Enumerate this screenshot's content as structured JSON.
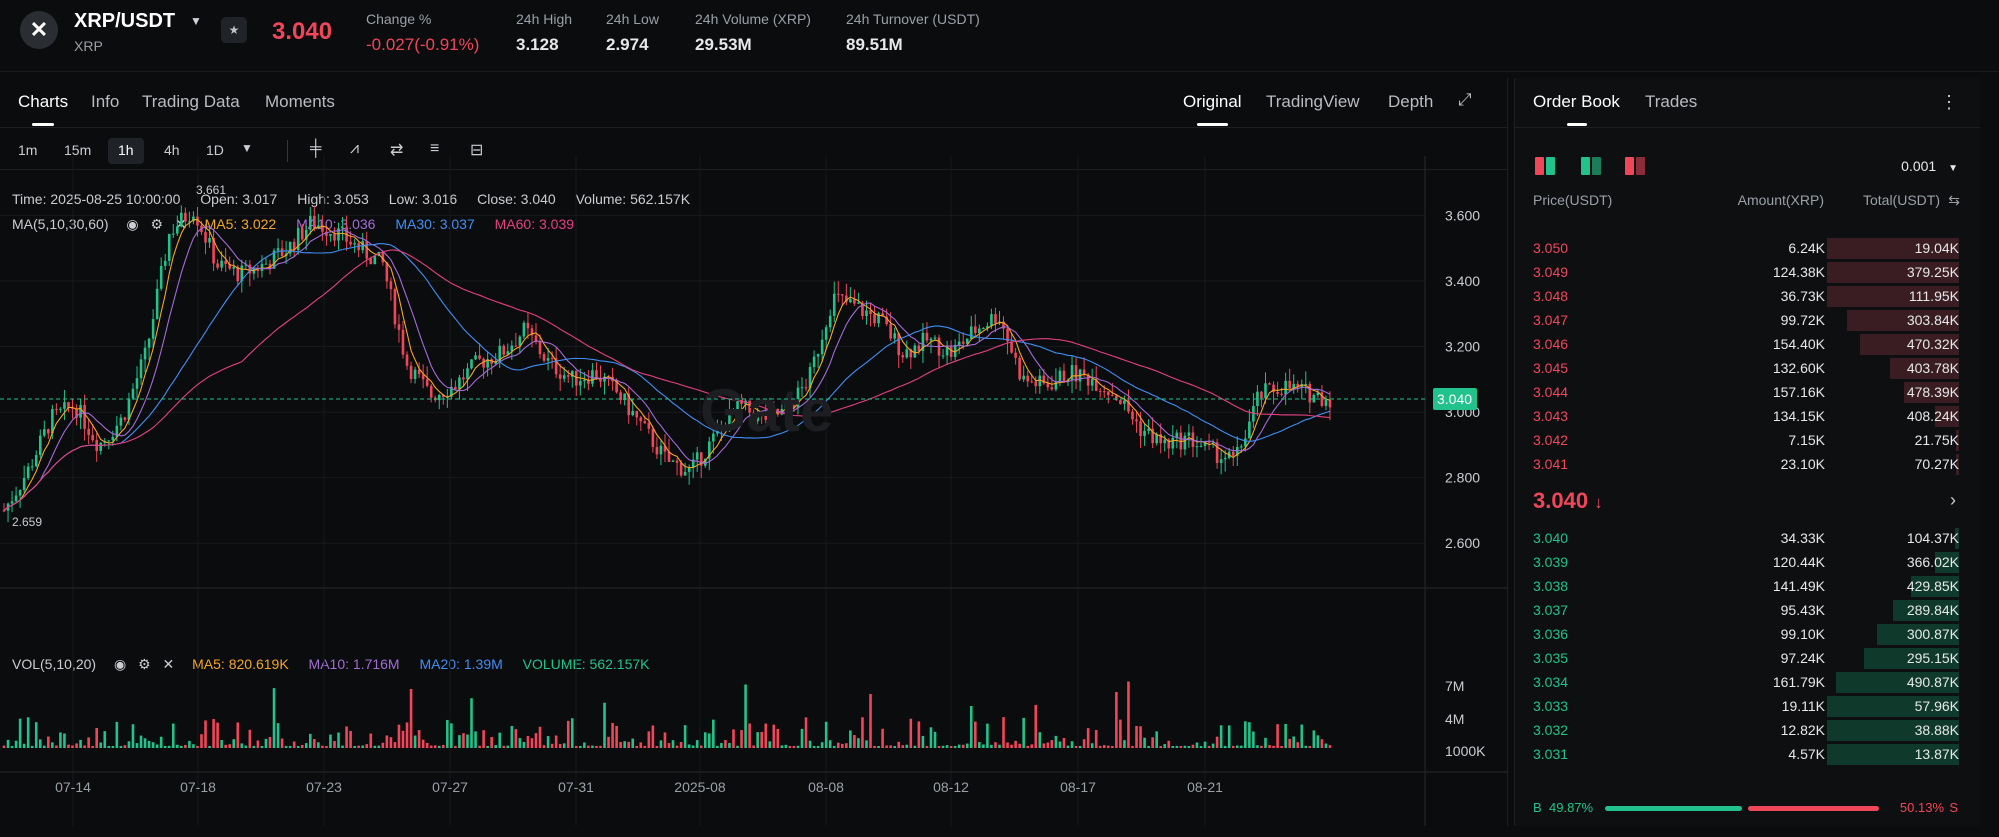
{
  "header": {
    "pair": "XRP/USDT",
    "base": "XRP",
    "last_price": "3.040",
    "change_label": "Change %",
    "change_value": "-0.027(-0.91%)",
    "high_label": "24h High",
    "high_value": "3.128",
    "low_label": "24h Low",
    "low_value": "2.974",
    "vol_label": "24h Volume (XRP)",
    "vol_value": "29.53M",
    "turnover_label": "24h Turnover (USDT)",
    "turnover_value": "89.51M"
  },
  "chart_tabs": [
    "Charts",
    "Info",
    "Trading Data",
    "Moments"
  ],
  "chart_modes": [
    "Original",
    "TradingView",
    "Depth"
  ],
  "timeframes": [
    "1m",
    "15m",
    "1h",
    "4h",
    "1D"
  ],
  "ohlc": {
    "time": "Time: 2025-08-25 10:00:00",
    "open": "Open: 3.017",
    "high": "High: 3.053",
    "low": "Low: 3.016",
    "close": "Close: 3.040",
    "volume": "Volume: 562.157K"
  },
  "ma": {
    "label": "MA(5,10,30,60)",
    "ma5": "MA5: 3.022",
    "ma10": "MA10: 3.036",
    "ma30": "MA30: 3.037",
    "ma60": "MA60: 3.039"
  },
  "vol": {
    "label": "VOL(5,10,20)",
    "ma5": "MA5: 820.619K",
    "ma10": "MA10: 1.716M",
    "ma20": "MA20: 1.39M",
    "volume": "VOLUME: 562.157K"
  },
  "chart_data": {
    "type": "line",
    "title": "",
    "price_axis": [
      "3.600",
      "3.400",
      "3.200",
      "3.000",
      "2.800",
      "2.600"
    ],
    "volume_axis": [
      "7M",
      "4M",
      "1000K"
    ],
    "x_labels": [
      "07-14",
      "07-18",
      "07-23",
      "07-27",
      "07-31",
      "2025-08",
      "08-08",
      "08-12",
      "08-17",
      "08-21"
    ],
    "current_price_tag": "3.040",
    "high_marker": "3.661",
    "low_marker": "2.659",
    "series": [
      {
        "values": [
          2.7,
          2.82,
          2.98,
          3.02,
          2.9,
          2.98,
          3.18,
          3.55,
          3.62,
          3.45,
          3.42,
          3.45,
          3.5,
          3.58,
          3.55,
          3.5,
          3.45,
          3.15,
          3.05,
          3.08,
          3.15,
          3.18,
          3.25,
          3.15,
          3.1,
          3.12,
          3.05,
          2.95,
          2.85,
          2.82,
          2.92,
          3.02,
          2.98,
          3.0,
          3.1,
          3.35,
          3.32,
          3.28,
          3.18,
          3.22,
          3.18,
          3.25,
          3.3,
          3.1,
          3.08,
          3.12,
          3.1,
          3.05,
          2.95,
          2.9,
          2.92,
          2.88,
          2.85,
          3.05,
          3.08,
          3.06,
          3.04
        ]
      }
    ]
  },
  "book": {
    "tabs": [
      "Order Book",
      "Trades"
    ],
    "precision": "0.001",
    "headers": {
      "price": "Price(USDT)",
      "amount": "Amount(XRP)",
      "total": "Total(USDT)"
    },
    "asks": [
      {
        "price": "3.050",
        "amount": "6.24K",
        "total": "19.04K",
        "depth": 1.0
      },
      {
        "price": "3.049",
        "amount": "124.38K",
        "total": "379.25K",
        "depth": 1.0
      },
      {
        "price": "3.048",
        "amount": "36.73K",
        "total": "111.95K",
        "depth": 1.0
      },
      {
        "price": "3.047",
        "amount": "99.72K",
        "total": "303.84K",
        "depth": 0.85
      },
      {
        "price": "3.046",
        "amount": "154.40K",
        "total": "470.32K",
        "depth": 0.75
      },
      {
        "price": "3.045",
        "amount": "132.60K",
        "total": "403.78K",
        "depth": 0.52
      },
      {
        "price": "3.044",
        "amount": "157.16K",
        "total": "478.39K",
        "depth": 0.42
      },
      {
        "price": "3.043",
        "amount": "134.15K",
        "total": "408.24K",
        "depth": 0.18
      },
      {
        "price": "3.042",
        "amount": "7.15K",
        "total": "21.75K",
        "depth": 0.02
      },
      {
        "price": "3.041",
        "amount": "23.10K",
        "total": "70.27K",
        "depth": 0.02
      }
    ],
    "mid_price": "3.040",
    "bids": [
      {
        "price": "3.040",
        "amount": "34.33K",
        "total": "104.37K",
        "depth": 0.03
      },
      {
        "price": "3.039",
        "amount": "120.44K",
        "total": "366.02K",
        "depth": 0.18
      },
      {
        "price": "3.038",
        "amount": "141.49K",
        "total": "429.85K",
        "depth": 0.36
      },
      {
        "price": "3.037",
        "amount": "95.43K",
        "total": "289.84K",
        "depth": 0.5
      },
      {
        "price": "3.036",
        "amount": "99.10K",
        "total": "300.87K",
        "depth": 0.62
      },
      {
        "price": "3.035",
        "amount": "97.24K",
        "total": "295.15K",
        "depth": 0.72
      },
      {
        "price": "3.034",
        "amount": "161.79K",
        "total": "490.87K",
        "depth": 0.93
      },
      {
        "price": "3.033",
        "amount": "19.11K",
        "total": "57.96K",
        "depth": 1.0
      },
      {
        "price": "3.032",
        "amount": "12.82K",
        "total": "38.88K",
        "depth": 1.0
      },
      {
        "price": "3.031",
        "amount": "4.57K",
        "total": "13.87K",
        "depth": 1.0
      }
    ],
    "buy_ratio": "49.87%",
    "sell_ratio": "50.13%",
    "buy_letter": "B",
    "sell_letter": "S"
  },
  "colors": {
    "up": "#21c28b",
    "down": "#f0465a",
    "ma5": "#f5a623",
    "ma10": "#a36bd8",
    "ma30": "#3f8ef5",
    "ma60": "#e4407f"
  }
}
